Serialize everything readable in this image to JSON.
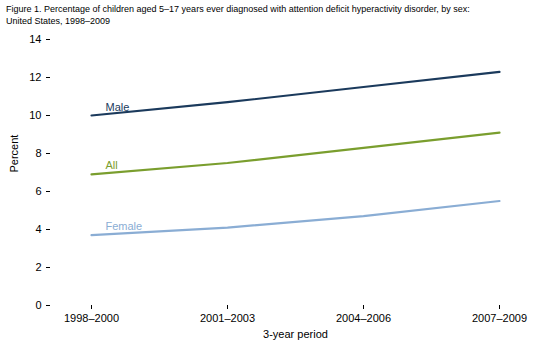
{
  "chart_data": {
    "type": "line",
    "title": "Figure 1. Percentage of children aged 5–17 years ever diagnosed with attention deficit hyperactivity disorder, by sex:",
    "subtitle": "United States, 1998–2009",
    "x_label": "3-year period",
    "y_label": "Percent",
    "categories": [
      "1998–2000",
      "2001–2003",
      "2004–2006",
      "2007–2009"
    ],
    "series": [
      {
        "name": "Male",
        "color": "#1b3a5c",
        "values": [
          10.0,
          10.7,
          11.5,
          12.3
        ]
      },
      {
        "name": "All",
        "color": "#7a9e2e",
        "values": [
          6.9,
          7.5,
          8.3,
          9.1
        ]
      },
      {
        "name": "Female",
        "color": "#8aadd4",
        "values": [
          3.7,
          4.1,
          4.7,
          5.5
        ]
      }
    ],
    "ylim": [
      0,
      14
    ],
    "yticks": [
      0,
      2,
      4,
      6,
      8,
      10,
      12,
      14
    ],
    "grid": false
  }
}
